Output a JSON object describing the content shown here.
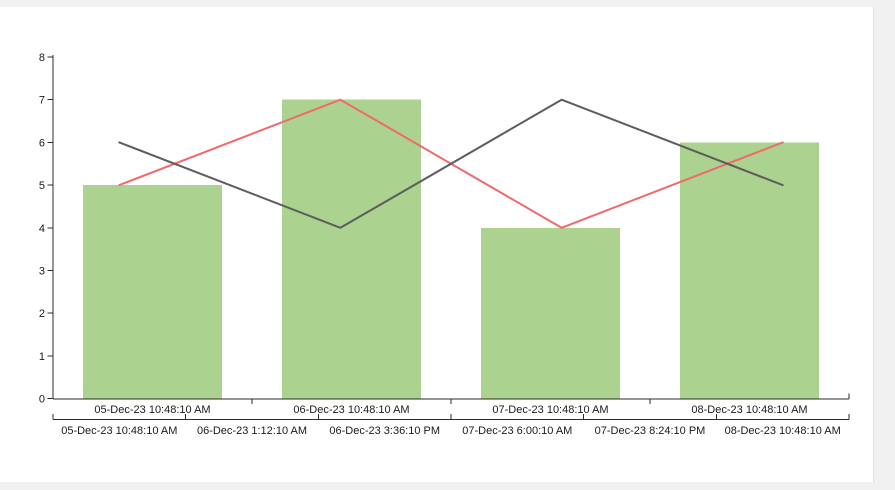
{
  "window": {
    "background_color": "#f1f1f1",
    "panel_background_color": "#ffffff"
  },
  "chart_data": {
    "type": "bar",
    "subtype": "bar-and-line-combo",
    "title": "",
    "grid": false,
    "legend": false,
    "axis_color": "#2b2b2b",
    "label_color": "#1a1a1a",
    "categories": [
      "05-Dec-23 10:48:10 AM",
      "06-Dec-23 10:48:10 AM",
      "07-Dec-23 10:48:10 AM",
      "08-Dec-23 10:48:10 AM"
    ],
    "series": [
      {
        "name": "bar-series",
        "type": "bar",
        "color": "#abd38f",
        "values": [
          5,
          7,
          4,
          6
        ]
      },
      {
        "name": "red-line-series",
        "type": "line",
        "color": "#ef6a6c",
        "values": [
          5,
          7,
          4,
          6
        ]
      },
      {
        "name": "dark-line-series",
        "type": "line",
        "color": "#5d5d5d",
        "values": [
          6,
          4,
          7,
          5
        ]
      }
    ],
    "y_axis": {
      "min": 0,
      "max": 8,
      "tick_interval": 1,
      "tick_labels": [
        "0",
        "1",
        "2",
        "3",
        "4",
        "5",
        "6",
        "7",
        "8"
      ]
    },
    "x_axis_primary": {
      "tick_labels": [
        "05-Dec-23 10:48:10 AM",
        "06-Dec-23 10:48:10 AM",
        "07-Dec-23 10:48:10 AM",
        "08-Dec-23 10:48:10 AM"
      ]
    },
    "x_axis_secondary": {
      "tick_labels": [
        "05-Dec-23 10:48:10 AM",
        "06-Dec-23 1:12:10 AM",
        "06-Dec-23 3:36:10 PM",
        "07-Dec-23 6:00:10 AM",
        "07-Dec-23 8:24:10 PM",
        "08-Dec-23 10:48:10 AM"
      ]
    }
  }
}
